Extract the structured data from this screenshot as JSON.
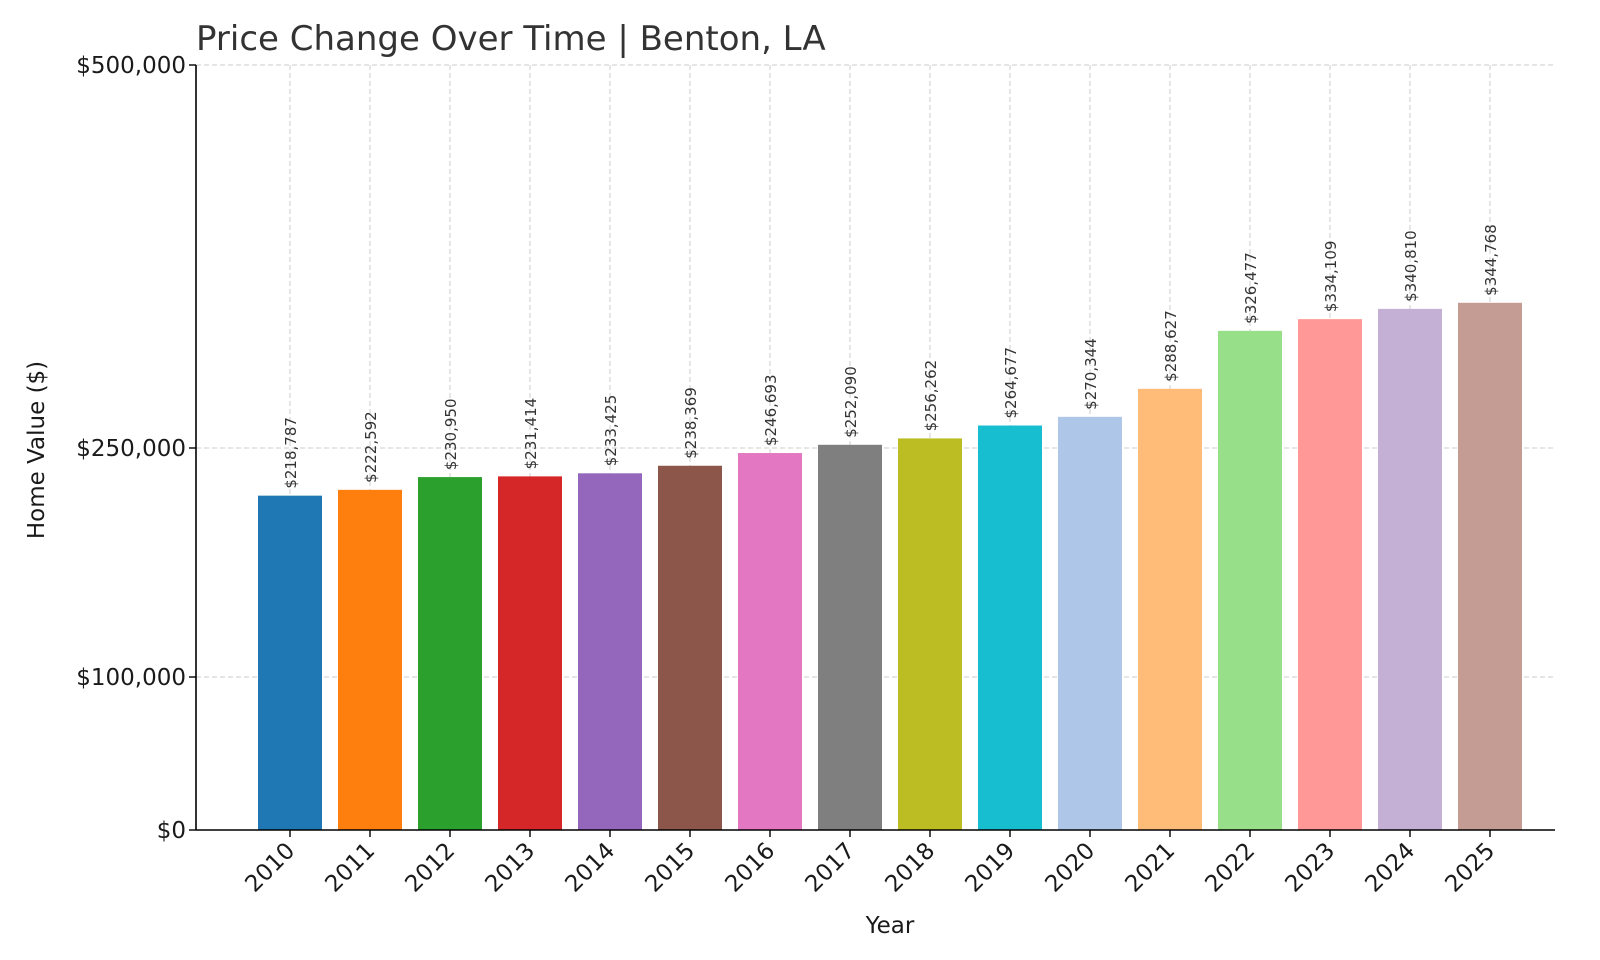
{
  "chart_data": {
    "type": "bar",
    "title": "Price Change Over Time | Benton, LA",
    "xlabel": "Year",
    "ylabel": "Home Value ($)",
    "categories": [
      "2010",
      "2011",
      "2012",
      "2013",
      "2014",
      "2015",
      "2016",
      "2017",
      "2018",
      "2019",
      "2020",
      "2021",
      "2022",
      "2023",
      "2024",
      "2025"
    ],
    "values": [
      218787,
      222592,
      230950,
      231414,
      233425,
      238369,
      246693,
      252090,
      256262,
      264677,
      270344,
      288627,
      326477,
      334109,
      340810,
      344768
    ],
    "value_labels": [
      "$218,787",
      "$222,592",
      "$230,950",
      "$231,414",
      "$233,425",
      "$238,369",
      "$246,693",
      "$252,090",
      "$256,262",
      "$264,677",
      "$270,344",
      "$288,627",
      "$326,477",
      "$334,109",
      "$340,810",
      "$344,768"
    ],
    "colors": [
      "#1f77b4",
      "#ff7f0e",
      "#2ca02c",
      "#d62728",
      "#9467bd",
      "#8c564b",
      "#e377c2",
      "#7f7f7f",
      "#bcbd22",
      "#17becf",
      "#aec7e8",
      "#ffbb78",
      "#98df8a",
      "#ff9896",
      "#c5b0d5",
      "#c49c94"
    ],
    "yticks": [
      0,
      100000,
      250000,
      500000
    ],
    "ytick_labels": [
      "$0",
      "$100,000",
      "$250,000",
      "$500,000"
    ],
    "ylim": [
      0,
      500000
    ],
    "grid": true
  }
}
